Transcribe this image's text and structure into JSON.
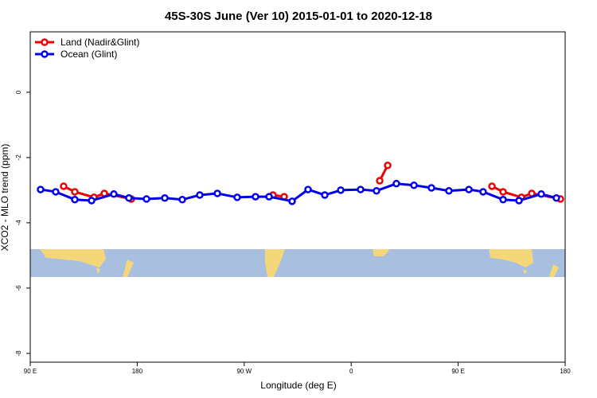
{
  "chart_data": {
    "type": "line",
    "title": "45S-30S June (Ver 10)   2015-01-01 to 2020-12-18",
    "x_label": "Longitude (deg E)",
    "y_label": "XCO2 - MLO trend (ppm)",
    "xlim": [
      90,
      540
    ],
    "ylim": [
      -8.27,
      1.85
    ],
    "xticks": [
      {
        "value": 90,
        "label": "90 E"
      },
      {
        "value": 180,
        "label": "180"
      },
      {
        "value": 270,
        "label": "90 W"
      },
      {
        "value": 360,
        "label": "0"
      },
      {
        "value": 450,
        "label": "90 E"
      },
      {
        "value": 540,
        "label": "180"
      }
    ],
    "yticks": [
      0,
      -2,
      -4,
      -6,
      -8
    ],
    "legend": "top-left",
    "series": [
      {
        "name": "Land (Nadir&Glint)",
        "color": "#ee0000",
        "x": [
          118.1,
          127.5,
          143.6,
          152.3,
          175.0,
          null,
          294.2,
          303.6,
          null,
          384.0,
          390.7,
          null,
          478.4,
          487.8,
          503.2,
          511.9,
          536.0
        ],
        "values": [
          -2.88,
          -3.05,
          -3.22,
          -3.1,
          -3.27,
          null,
          -3.15,
          -3.2,
          null,
          -2.71,
          -2.24,
          null,
          -2.88,
          -3.05,
          -3.22,
          -3.1,
          -3.27
        ]
      },
      {
        "name": "Ocean (Glint)",
        "color": "#0000ee",
        "x": [
          98.7,
          111.4,
          127.5,
          141.6,
          160.3,
          173.0,
          187.8,
          203.2,
          217.9,
          232.6,
          247.4,
          264.1,
          279.5,
          290.9,
          310.3,
          323.7,
          337.8,
          351.2,
          367.9,
          381.3,
          398.0,
          412.8,
          427.5,
          442.2,
          459.0,
          471.0,
          487.8,
          501.2,
          519.9,
          532.6
        ],
        "values": [
          -2.98,
          -3.05,
          -3.29,
          -3.32,
          -3.12,
          -3.24,
          -3.27,
          -3.24,
          -3.29,
          -3.15,
          -3.1,
          -3.22,
          -3.2,
          -3.2,
          -3.34,
          -2.98,
          -3.15,
          -3.0,
          -2.98,
          -3.02,
          -2.8,
          -2.85,
          -2.93,
          -3.02,
          -2.98,
          -3.05,
          -3.29,
          -3.32,
          -3.12,
          -3.24
        ]
      }
    ]
  }
}
